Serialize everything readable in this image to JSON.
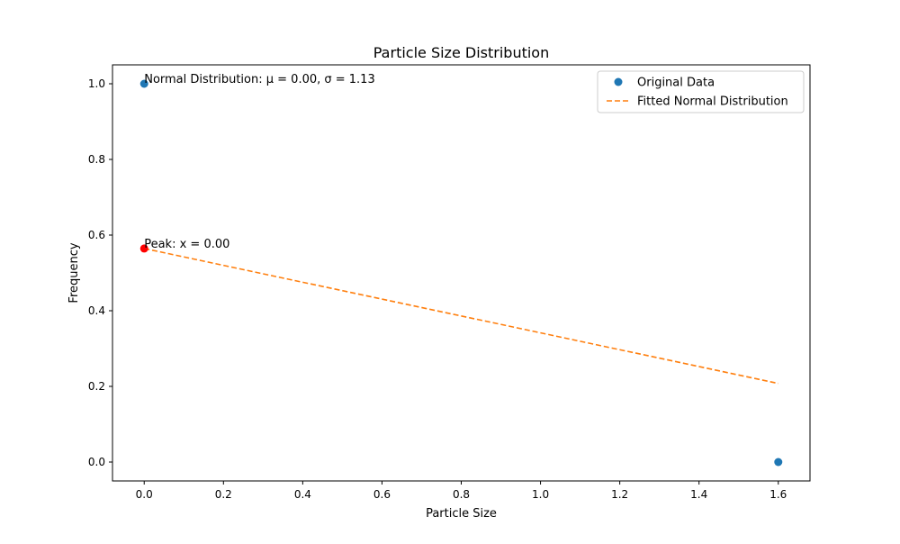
{
  "chart_data": {
    "type": "scatter",
    "title": "Particle Size Distribution",
    "xlabel": "Particle Size",
    "ylabel": "Frequency",
    "xlim": [
      -0.08,
      1.68
    ],
    "ylim": [
      -0.05,
      1.05
    ],
    "xticks": [
      0.0,
      0.2,
      0.4,
      0.6,
      0.8,
      1.0,
      1.2,
      1.4,
      1.6
    ],
    "yticks": [
      0.0,
      0.2,
      0.4,
      0.6,
      0.8,
      1.0
    ],
    "tick_decimals": 1,
    "grid": false,
    "legend_position": "top-right",
    "series": [
      {
        "name": "Original Data",
        "kind": "scatter",
        "color": "#1f77b4",
        "x": [
          0.0,
          1.6
        ],
        "y": [
          1.0,
          0.0
        ]
      },
      {
        "name": "Fitted Normal Distribution",
        "kind": "line",
        "style": "dashed",
        "color": "#ff7f0e",
        "x": [
          0.0,
          1.6
        ],
        "y": [
          0.5645,
          0.2078
        ]
      }
    ],
    "peak_marker": {
      "x": 0.0,
      "y": 0.5645,
      "color": "#ff0000"
    },
    "annotations": [
      {
        "text": "Normal Distribution: μ = 0.00, σ = 1.13",
        "x": 0.0,
        "y": 1.0
      },
      {
        "text": "Peak: x = 0.00",
        "x": 0.0,
        "y": 0.5645
      }
    ]
  }
}
